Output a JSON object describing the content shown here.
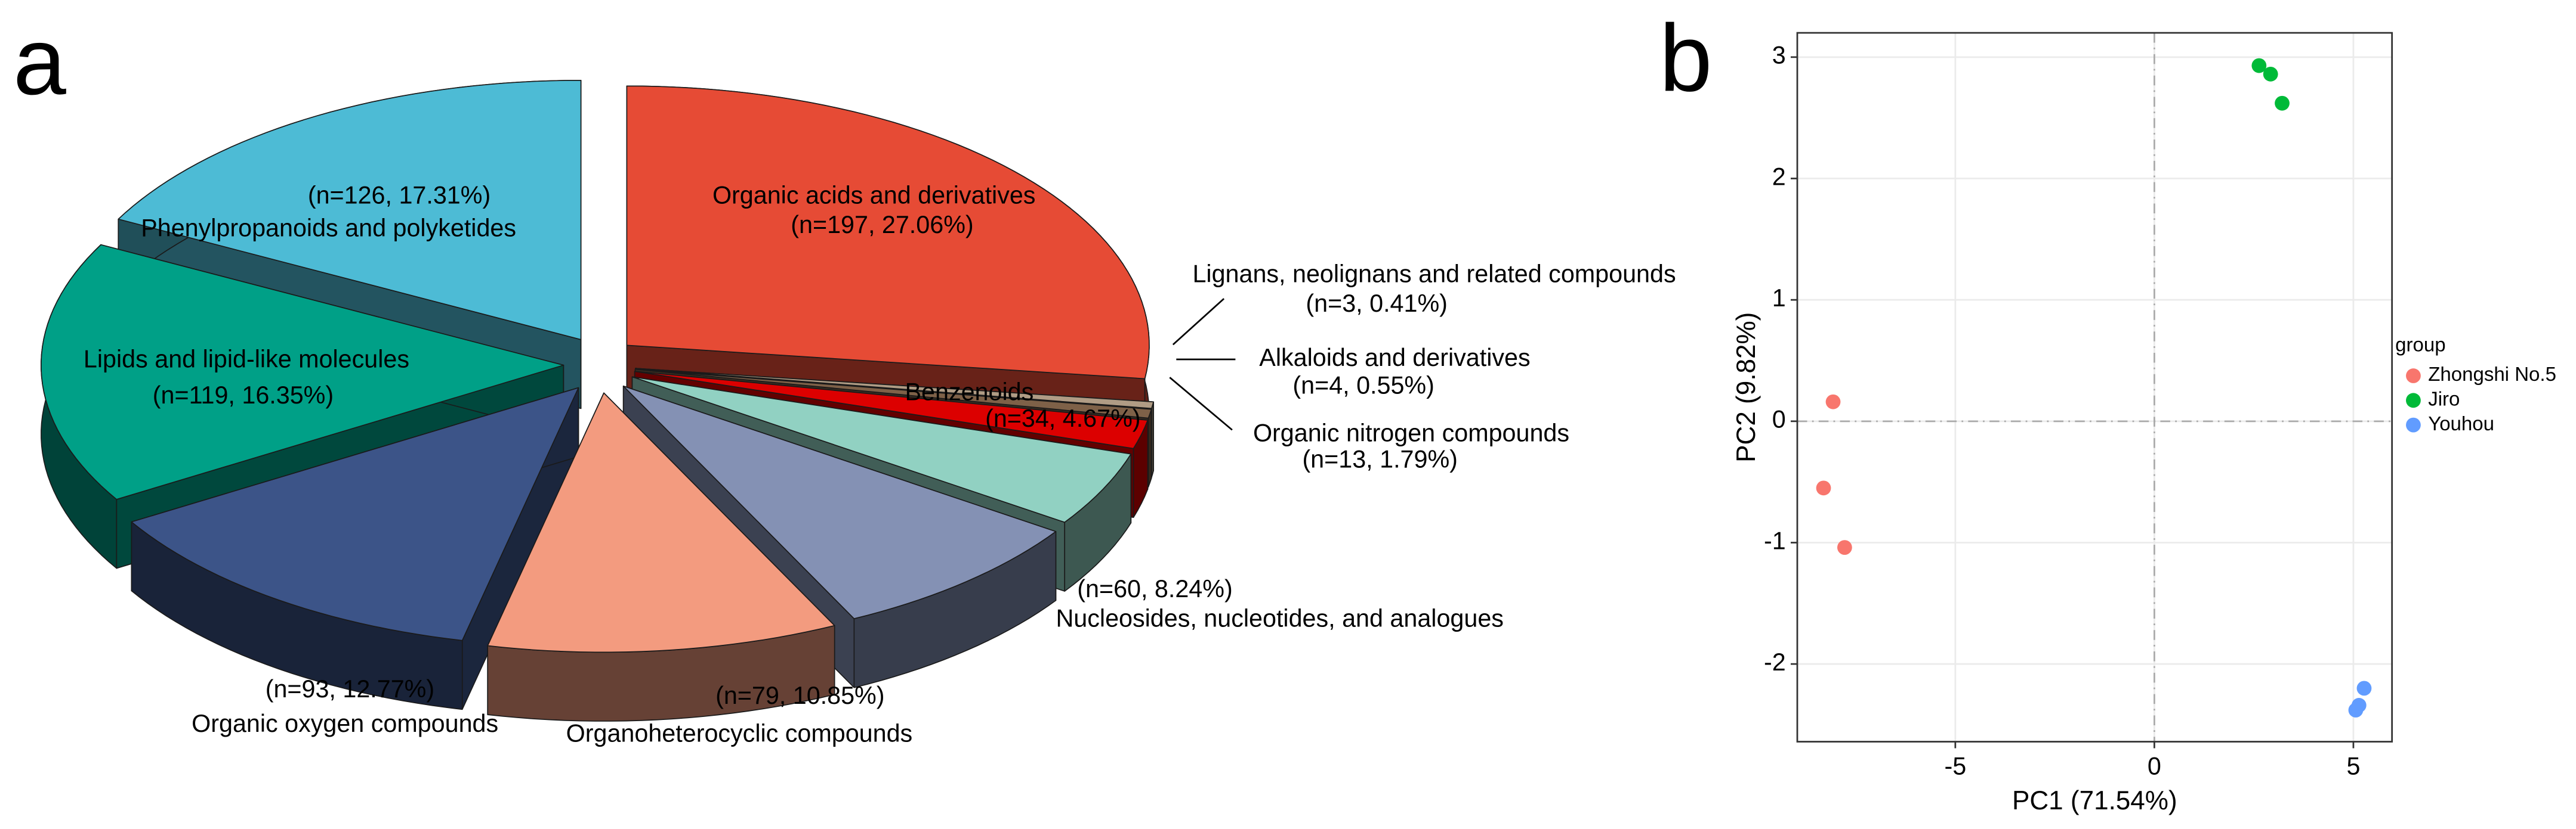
{
  "chart_data": [
    {
      "type": "pie",
      "panel_label": "a",
      "categories": [
        "Organic acids and derivatives",
        "Lignans, neolignans and related compounds",
        "Alkaloids and derivatives",
        "Organic nitrogen compounds",
        "Benzenoids",
        "Nucleosides, nucleotides, and analogues",
        "Organoheterocyclic compounds",
        "Organic oxygen compounds",
        "Lipids and lipid-like molecules",
        "Phenylpropanoids and polyketides"
      ],
      "values": [
        27.06,
        0.41,
        0.55,
        1.79,
        4.67,
        8.24,
        10.85,
        12.77,
        16.35,
        17.31
      ],
      "value_labels": [
        "(n=197, 27.06%)",
        "(n=3, 0.41%)",
        "(n=4, 0.55%)",
        "(n=13, 1.79%)",
        "(n=34, 4.67%)",
        "(n=60, 8.24%)",
        "(n=79, 10.85%)",
        "(n=93, 12.77%)",
        "(n=119, 16.35%)",
        "(n=126, 17.31%)"
      ],
      "colors": [
        "#E64B35",
        "#B09C85",
        "#7E6148",
        "#DC0000",
        "#91D1C2",
        "#8491B4",
        "#F39B7F",
        "#3C5488",
        "#00A087",
        "#4DBBD5"
      ],
      "start_angle": 90,
      "direction": "clockwise",
      "exploded": true,
      "three_d": true
    },
    {
      "type": "scatter",
      "panel_label": "b",
      "xlabel": "PC1 (71.54%)",
      "ylabel": "PC2 (9.82%)",
      "xlim": [
        -8.97,
        5.97
      ],
      "ylim": [
        -2.64,
        3.2
      ],
      "xticks": [
        -5,
        0,
        5
      ],
      "yticks": [
        -2,
        -1,
        0,
        1,
        2,
        3
      ],
      "grid": true,
      "hline": 0,
      "vline": 0,
      "legend_title": "group",
      "legend_position": "right",
      "series": [
        {
          "name": "Zhongshi No.5",
          "color": "#F8766D",
          "x": [
            -8.07,
            -8.31,
            -7.78
          ],
          "y": [
            0.16,
            -0.55,
            -1.04
          ]
        },
        {
          "name": "Jiro",
          "color": "#00BA38",
          "x": [
            2.63,
            2.92,
            3.21
          ],
          "y": [
            2.93,
            2.86,
            2.62
          ]
        },
        {
          "name": "Youhou",
          "color": "#619CFF",
          "x": [
            5.27,
            5.14,
            5.06
          ],
          "y": [
            -2.2,
            -2.34,
            -2.38
          ]
        }
      ]
    }
  ]
}
